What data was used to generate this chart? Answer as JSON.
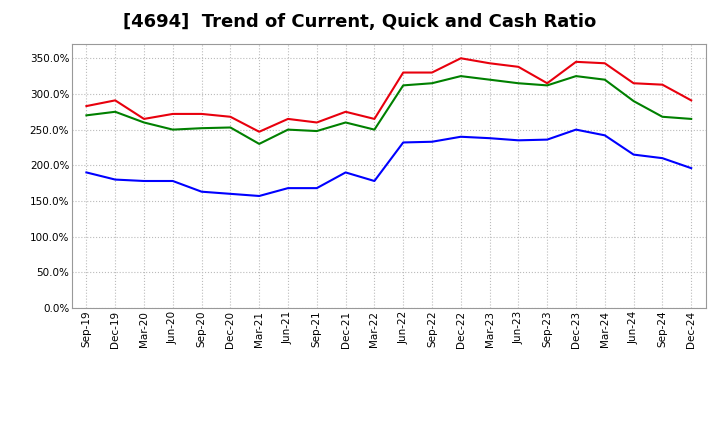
{
  "title": "[4694]  Trend of Current, Quick and Cash Ratio",
  "labels": [
    "Sep-19",
    "Dec-19",
    "Mar-20",
    "Jun-20",
    "Sep-20",
    "Dec-20",
    "Mar-21",
    "Jun-21",
    "Sep-21",
    "Dec-21",
    "Mar-22",
    "Jun-22",
    "Sep-22",
    "Dec-22",
    "Mar-23",
    "Jun-23",
    "Sep-23",
    "Dec-23",
    "Mar-24",
    "Jun-24",
    "Sep-24",
    "Dec-24"
  ],
  "current_ratio": [
    283,
    291,
    265,
    272,
    272,
    268,
    247,
    265,
    260,
    275,
    265,
    330,
    330,
    350,
    343,
    338,
    315,
    345,
    343,
    315,
    313,
    291
  ],
  "quick_ratio": [
    270,
    275,
    260,
    250,
    252,
    253,
    230,
    250,
    248,
    260,
    250,
    312,
    315,
    325,
    320,
    315,
    312,
    325,
    320,
    290,
    268,
    265
  ],
  "cash_ratio": [
    190,
    180,
    178,
    178,
    163,
    160,
    157,
    168,
    168,
    190,
    178,
    232,
    233,
    240,
    238,
    235,
    236,
    250,
    242,
    215,
    210,
    196
  ],
  "current_color": "#e8000d",
  "quick_color": "#008000",
  "cash_color": "#0000ff",
  "background_color": "#ffffff",
  "grid_color": "#bbbbbb",
  "ylim": [
    0,
    370
  ],
  "yticks": [
    0,
    50,
    100,
    150,
    200,
    250,
    300,
    350
  ],
  "title_fontsize": 13,
  "legend_fontsize": 9,
  "tick_fontsize": 7.5
}
